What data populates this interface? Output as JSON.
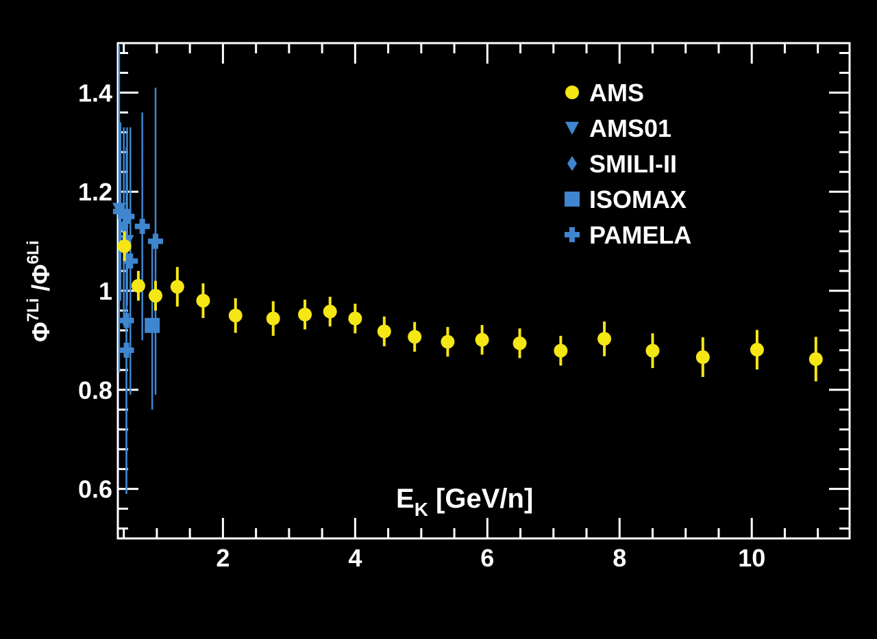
{
  "chart_data": {
    "type": "scatter",
    "xlabel_main": "E",
    "xlabel_sub": "K",
    "xlabel_unit": " [GeV/n]",
    "ylabel_parts": [
      "Φ",
      "7",
      "Li",
      " /Φ",
      "6",
      "Li"
    ],
    "xlim": [
      0.41,
      11.48
    ],
    "ylim": [
      0.5,
      1.5
    ],
    "xticks": [
      2,
      4,
      6,
      8,
      10
    ],
    "xtick_labels": [
      "2",
      "4",
      "6",
      "8",
      "10"
    ],
    "yticks": [
      0.6,
      0.8,
      1.0,
      1.2,
      1.4
    ],
    "ytick_labels": [
      "0.6",
      "0.8",
      "1",
      "1.2",
      "1.4"
    ],
    "grid": false,
    "legend_position": "top-right",
    "colors": {
      "background": "#000000",
      "axes": "#ffffff",
      "ams": "#f5e616",
      "others": "#3f86cf"
    },
    "series": [
      {
        "name": "AMS",
        "marker": "circle",
        "color": "#f5e616",
        "points": [
          [
            0.51,
            1.09,
            0.03
          ],
          [
            0.72,
            1.01,
            0.03
          ],
          [
            0.98,
            0.99,
            0.03
          ],
          [
            1.31,
            1.008,
            0.04
          ],
          [
            1.7,
            0.98,
            0.035
          ],
          [
            2.19,
            0.95,
            0.035
          ],
          [
            2.76,
            0.944,
            0.035
          ],
          [
            3.24,
            0.952,
            0.03
          ],
          [
            3.62,
            0.958,
            0.03
          ],
          [
            4.0,
            0.944,
            0.03
          ],
          [
            4.44,
            0.918,
            0.03
          ],
          [
            4.9,
            0.907,
            0.03
          ],
          [
            5.4,
            0.897,
            0.03
          ],
          [
            5.92,
            0.901,
            0.03
          ],
          [
            6.49,
            0.894,
            0.03
          ],
          [
            7.11,
            0.879,
            0.03
          ],
          [
            7.77,
            0.903,
            0.035
          ],
          [
            8.5,
            0.879,
            0.035
          ],
          [
            9.26,
            0.866,
            0.04
          ],
          [
            10.08,
            0.881,
            0.04
          ],
          [
            10.97,
            0.862,
            0.045
          ]
        ]
      },
      {
        "name": "AMS01",
        "marker": "triangle",
        "color": "#3f86cf",
        "points": [
          [
            0.43,
            1.165,
            0.33
          ],
          [
            0.55,
            1.1,
            0.12
          ]
        ]
      },
      {
        "name": "SMILI-II",
        "marker": "diamond",
        "color": "#3f86cf",
        "points": [
          [
            0.5,
            1.13,
            0.2
          ]
        ]
      },
      {
        "name": "ISOMAX",
        "marker": "square",
        "color": "#3f86cf",
        "points": [
          [
            0.93,
            0.93,
            0.17
          ]
        ]
      },
      {
        "name": "PAMELA",
        "marker": "cross",
        "color": "#3f86cf",
        "points": [
          [
            0.45,
            1.16,
            0.18
          ],
          [
            0.55,
            1.15,
            0.18
          ],
          [
            0.6,
            1.06,
            0.27
          ],
          [
            0.78,
            1.13,
            0.23
          ],
          [
            0.98,
            1.1,
            0.31
          ],
          [
            0.54,
            0.94,
            0.35
          ],
          [
            0.54,
            0.88,
            0.29
          ]
        ]
      }
    ]
  }
}
